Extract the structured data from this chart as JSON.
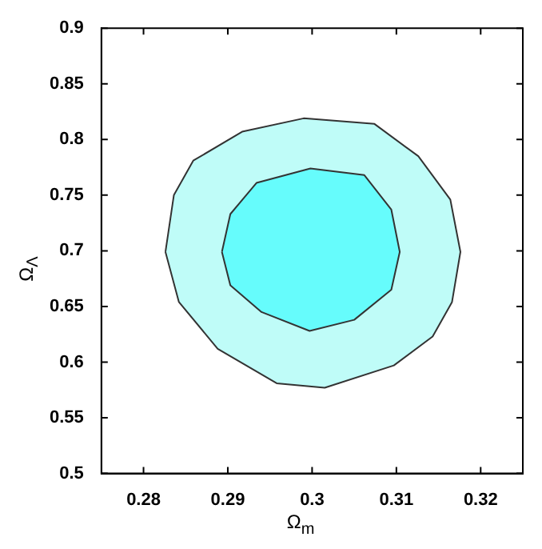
{
  "chart_data": {
    "type": "area",
    "xlabel": "Ω$_{m}$",
    "ylabel": "Ω$_{Λ}$",
    "xlim": [
      0.275,
      0.325
    ],
    "xticks": [
      0.28,
      0.29,
      0.3,
      0.31,
      0.32
    ],
    "ylim": [
      0.5,
      0.9
    ],
    "yticks": [
      0.5,
      0.55,
      0.6,
      0.65,
      0.7,
      0.75,
      0.8,
      0.85,
      0.9
    ],
    "series": [
      {
        "color": "#bffcf8",
        "x": [
          0.2826,
          0.2836,
          0.2859,
          0.2917,
          0.299,
          0.3074,
          0.3126,
          0.3164,
          0.3176,
          0.3166,
          0.3143,
          0.3097,
          0.3015,
          0.2958,
          0.2888,
          0.2842,
          0.2826
        ],
        "values": [
          0.699,
          0.75,
          0.781,
          0.807,
          0.819,
          0.814,
          0.785,
          0.746,
          0.699,
          0.654,
          0.623,
          0.597,
          0.577,
          0.581,
          0.612,
          0.654,
          0.699
        ]
      },
      {
        "color": "#66fcfc",
        "x": [
          0.2893,
          0.2903,
          0.2934,
          0.2998,
          0.3062,
          0.3094,
          0.3104,
          0.3094,
          0.305,
          0.2997,
          0.294,
          0.2903,
          0.2893
        ],
        "values": [
          0.699,
          0.733,
          0.761,
          0.774,
          0.768,
          0.737,
          0.699,
          0.665,
          0.638,
          0.628,
          0.645,
          0.669,
          0.699
        ]
      }
    ]
  }
}
